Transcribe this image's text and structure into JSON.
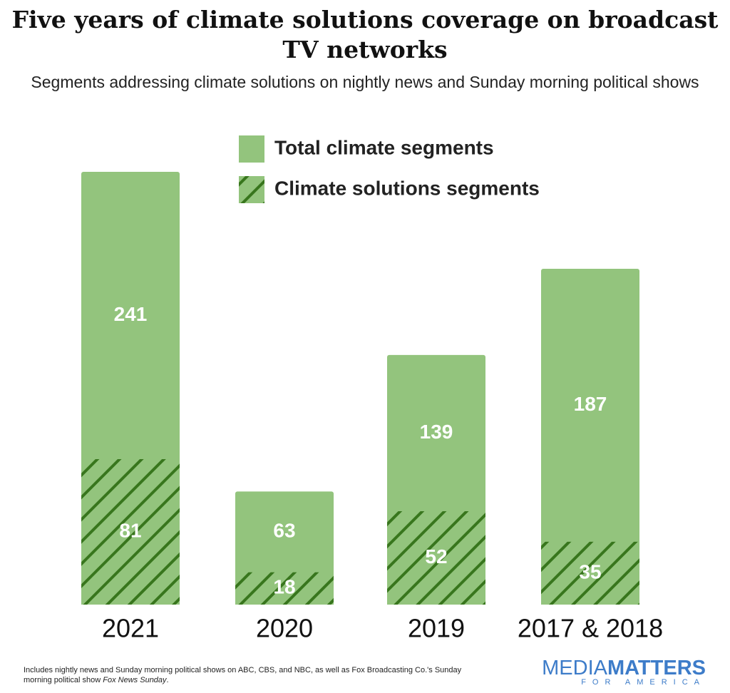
{
  "chart_data": {
    "type": "bar",
    "title": "Five years of climate solutions coverage on broadcast TV networks",
    "subtitle": "Segments addressing climate solutions on nightly news and Sunday morning political shows",
    "categories": [
      "2021",
      "2020",
      "2019",
      "2017 & 2018"
    ],
    "series": [
      {
        "name": "Total climate segments",
        "color": "#93c47d",
        "values": [
          241,
          63,
          139,
          187
        ]
      },
      {
        "name": "Climate solutions segments",
        "color": "#93c47d",
        "hatch_color": "#38761d",
        "values": [
          81,
          18,
          52,
          35
        ]
      }
    ],
    "overlap": true,
    "footnote": [
      "Includes nightly news and Sunday morning political shows on ABC, CBS, and NBC, as well as Fox Broadcasting Co.'s Sunday",
      "morning political show",
      "Fox News Sunday",
      "."
    ]
  },
  "logo": {
    "media": "MEDIA",
    "matters": "MATTERS",
    "tagline": "FOR AMERICA"
  }
}
